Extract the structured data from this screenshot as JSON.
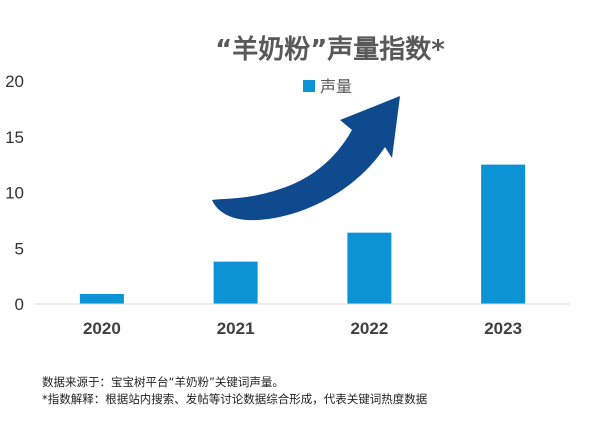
{
  "chart_data": {
    "type": "bar",
    "title": "“羊奶粉”声量指数*",
    "categories": [
      "2020",
      "2021",
      "2022",
      "2023"
    ],
    "series": [
      {
        "name": "声量",
        "values": [
          0.9,
          3.8,
          6.4,
          12.5
        ]
      }
    ],
    "ylim": [
      0,
      20
    ],
    "yticks": [
      0,
      5,
      10,
      15,
      20
    ],
    "grid": false,
    "legend": "top",
    "annotation": "upward trend arrow",
    "colors": {
      "bar": "#0b93d5",
      "arrow": "#0f4a8e",
      "axis": "#d9d9d9"
    }
  },
  "footnotes": {
    "source": "数据来源于：宝宝树平台“羊奶粉”关键词声量。",
    "definition": "*指数解释：根据站内搜索、发帖等讨论数据综合形成，代表关键词热度数据"
  }
}
